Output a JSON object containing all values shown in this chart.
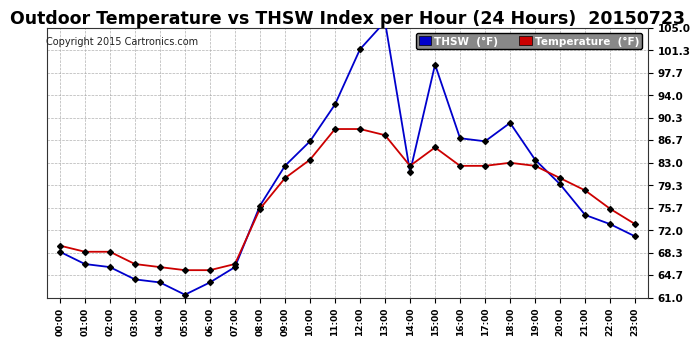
{
  "title": "Outdoor Temperature vs THSW Index per Hour (24 Hours)  20150723",
  "copyright": "Copyright 2015 Cartronics.com",
  "x_labels": [
    "00:00",
    "01:00",
    "02:00",
    "03:00",
    "04:00",
    "05:00",
    "06:00",
    "07:00",
    "08:00",
    "09:00",
    "10:00",
    "11:00",
    "12:00",
    "13:00",
    "14:00",
    "15:00",
    "16:00",
    "17:00",
    "18:00",
    "19:00",
    "20:00",
    "21:00",
    "22:00",
    "23:00"
  ],
  "thsw": [
    68.5,
    66.5,
    66.0,
    64.0,
    63.5,
    61.5,
    63.5,
    66.0,
    76.0,
    82.5,
    86.5,
    92.5,
    101.5,
    106.0,
    81.5,
    99.0,
    87.0,
    86.5,
    89.5,
    83.5,
    79.5,
    74.5,
    73.0,
    71.0
  ],
  "temp": [
    69.5,
    68.5,
    68.5,
    66.5,
    66.0,
    65.5,
    65.5,
    66.5,
    75.5,
    80.5,
    83.5,
    88.5,
    88.5,
    87.5,
    82.5,
    85.5,
    82.5,
    82.5,
    83.0,
    82.5,
    80.5,
    78.5,
    75.5,
    73.0
  ],
  "thsw_color": "#0000cc",
  "temp_color": "#cc0000",
  "bg_color": "#ffffff",
  "grid_color": "#aaaaaa",
  "ylim_min": 61.0,
  "ylim_max": 105.0,
  "yticks": [
    61.0,
    64.7,
    68.3,
    72.0,
    75.7,
    79.3,
    83.0,
    86.7,
    90.3,
    94.0,
    97.7,
    101.3,
    105.0
  ],
  "title_fontsize": 12.5,
  "legend_thsw": "THSW  (°F)",
  "legend_temp": "Temperature  (°F)"
}
